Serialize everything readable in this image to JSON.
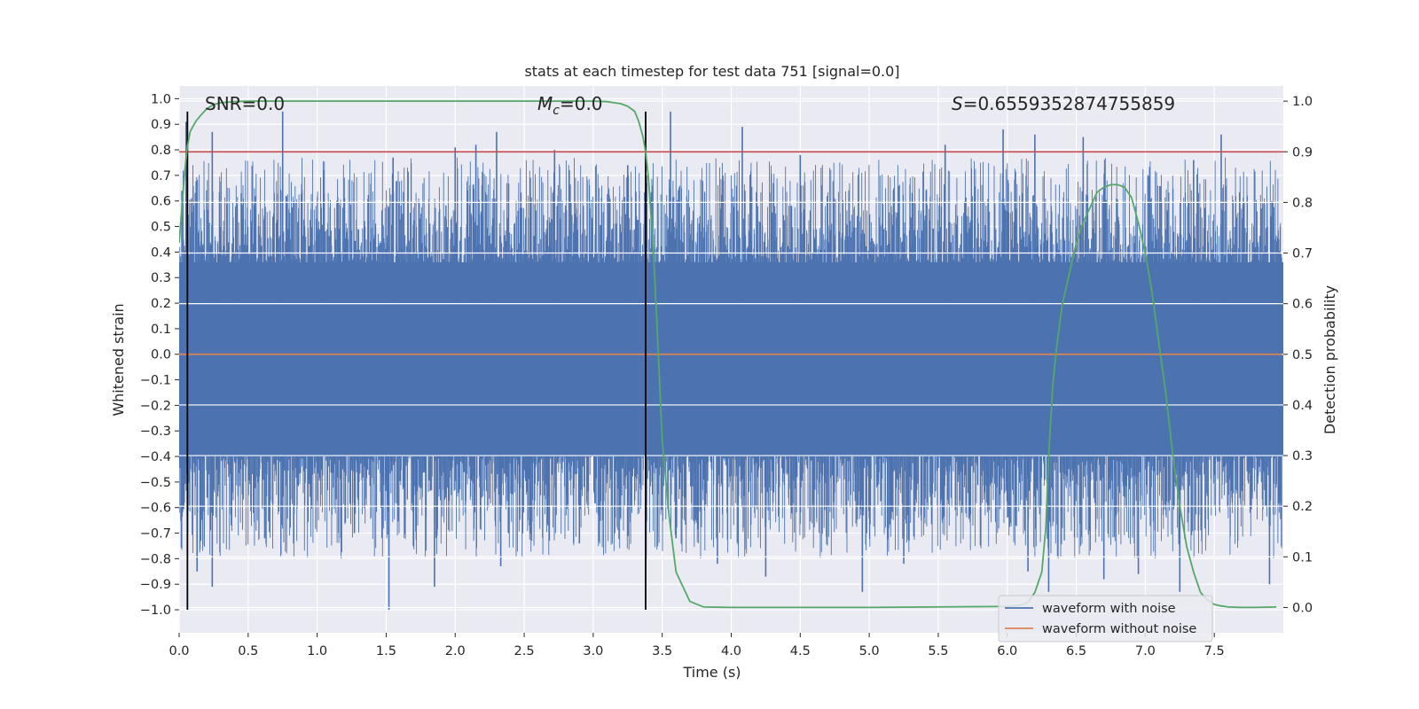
{
  "chart_data": {
    "type": "line",
    "title": "stats at each timestep for test data 751 [signal=0.0]",
    "xlabel": "Time (s)",
    "ylabel_left": "Whitened strain",
    "ylabel_right": "Detection probability",
    "xlim": [
      0.0,
      8.0
    ],
    "ylim_left": [
      -1.09,
      1.05
    ],
    "ylim_right": [
      -0.05,
      1.03
    ],
    "xticks": [
      "0.0",
      "0.5",
      "1.0",
      "1.5",
      "2.0",
      "2.5",
      "3.0",
      "3.5",
      "4.0",
      "4.5",
      "5.0",
      "5.5",
      "6.0",
      "6.5",
      "7.0",
      "7.5"
    ],
    "yticks_left": [
      "1.0",
      "0.9",
      "0.8",
      "0.7",
      "0.6",
      "0.5",
      "0.4",
      "0.3",
      "0.2",
      "0.1",
      "0.0",
      "−0.1",
      "−0.2",
      "−0.3",
      "−0.4",
      "−0.5",
      "−0.6",
      "−0.7",
      "−0.8",
      "−0.9",
      "−1.0"
    ],
    "yticks_right": [
      "1.0",
      "0.9",
      "0.8",
      "0.7",
      "0.6",
      "0.5",
      "0.4",
      "0.3",
      "0.2",
      "0.1",
      "0.0"
    ],
    "grid": true,
    "legend_position": "lower right",
    "annotations": {
      "snr": "SNR=0.0",
      "mc_symbol": "M",
      "mc_subscript": "c",
      "mc_value": "=0.0",
      "s_symbol": "S",
      "s_value": "=0.6559352874755859"
    },
    "colors": {
      "background": "#eaeaf2",
      "noise": "#4c72b0",
      "clean": "#dd8452",
      "probability": "#55a868",
      "threshold": "#c44e52",
      "marker": "#000000",
      "grid": "#ffffff"
    },
    "vertical_lines_x": [
      0.06,
      3.38
    ],
    "threshold_probability": 0.9,
    "series": [
      {
        "name": "waveform with noise",
        "axis": "left",
        "style": "dense-noise",
        "envelope_core": [
          -0.4,
          0.36
        ],
        "spikes": [
          {
            "x": 0.02,
            "y": 0.64
          },
          {
            "x": 0.05,
            "y": 0.91
          },
          {
            "x": 0.13,
            "y": -0.85
          },
          {
            "x": 0.24,
            "y": 0.87
          },
          {
            "x": 0.24,
            "y": -0.91
          },
          {
            "x": 0.45,
            "y": 0.63
          },
          {
            "x": 0.62,
            "y": -0.72
          },
          {
            "x": 0.75,
            "y": 0.95
          },
          {
            "x": 0.83,
            "y": -0.74
          },
          {
            "x": 1.05,
            "y": 0.63
          },
          {
            "x": 1.27,
            "y": -0.7
          },
          {
            "x": 1.52,
            "y": -1.0
          },
          {
            "x": 1.55,
            "y": 0.77
          },
          {
            "x": 1.85,
            "y": -0.91
          },
          {
            "x": 2.0,
            "y": 0.81
          },
          {
            "x": 2.15,
            "y": 0.82
          },
          {
            "x": 2.3,
            "y": 0.87
          },
          {
            "x": 2.33,
            "y": -0.83
          },
          {
            "x": 2.72,
            "y": 0.8
          },
          {
            "x": 2.9,
            "y": -0.74
          },
          {
            "x": 3.25,
            "y": 0.74
          },
          {
            "x": 3.56,
            "y": 0.95
          },
          {
            "x": 3.6,
            "y": -0.72
          },
          {
            "x": 3.9,
            "y": -0.82
          },
          {
            "x": 4.08,
            "y": 0.89
          },
          {
            "x": 4.25,
            "y": -0.87
          },
          {
            "x": 4.5,
            "y": 0.78
          },
          {
            "x": 4.95,
            "y": -0.93
          },
          {
            "x": 5.25,
            "y": -0.82
          },
          {
            "x": 5.55,
            "y": 0.82
          },
          {
            "x": 5.97,
            "y": 0.88
          },
          {
            "x": 6.15,
            "y": -0.85
          },
          {
            "x": 6.2,
            "y": 0.86
          },
          {
            "x": 6.3,
            "y": -0.93
          },
          {
            "x": 6.55,
            "y": 0.85
          },
          {
            "x": 6.7,
            "y": -0.88
          },
          {
            "x": 6.95,
            "y": -0.86
          },
          {
            "x": 7.25,
            "y": -0.93
          },
          {
            "x": 7.35,
            "y": 0.76
          },
          {
            "x": 7.55,
            "y": 0.86
          },
          {
            "x": 7.9,
            "y": -0.9
          }
        ]
      },
      {
        "name": "waveform without noise",
        "axis": "left",
        "style": "line",
        "x": [
          0.0,
          7.99
        ],
        "y": [
          0.0,
          0.0
        ]
      },
      {
        "name": "Detection probability",
        "axis": "right",
        "style": "line",
        "x": [
          0.0,
          0.02,
          0.04,
          0.06,
          0.08,
          0.1,
          0.12,
          0.15,
          0.2,
          0.25,
          0.3,
          0.4,
          0.5,
          1.0,
          2.0,
          3.0,
          3.1,
          3.2,
          3.25,
          3.3,
          3.33,
          3.36,
          3.38,
          3.4,
          3.42,
          3.44,
          3.46,
          3.48,
          3.5,
          3.55,
          3.6,
          3.7,
          3.8,
          4.0,
          5.0,
          6.0,
          6.1,
          6.15,
          6.2,
          6.25,
          6.28,
          6.3,
          6.33,
          6.36,
          6.4,
          6.45,
          6.5,
          6.55,
          6.6,
          6.65,
          6.7,
          6.75,
          6.8,
          6.85,
          6.9,
          6.95,
          7.0,
          7.05,
          7.1,
          7.15,
          7.2,
          7.25,
          7.3,
          7.35,
          7.4,
          7.45,
          7.5,
          7.55,
          7.6,
          7.7,
          7.8,
          7.95
        ],
        "y": [
          0.72,
          0.79,
          0.86,
          0.91,
          0.94,
          0.95,
          0.96,
          0.97,
          0.985,
          0.993,
          0.997,
          0.999,
          1.0,
          1.0,
          1.0,
          1.0,
          0.999,
          0.995,
          0.99,
          0.98,
          0.96,
          0.93,
          0.9,
          0.85,
          0.77,
          0.68,
          0.57,
          0.45,
          0.33,
          0.18,
          0.07,
          0.012,
          0.001,
          0.0,
          0.0,
          0.002,
          0.005,
          0.01,
          0.03,
          0.07,
          0.16,
          0.3,
          0.44,
          0.52,
          0.6,
          0.66,
          0.72,
          0.76,
          0.79,
          0.82,
          0.83,
          0.835,
          0.835,
          0.83,
          0.81,
          0.76,
          0.7,
          0.62,
          0.52,
          0.42,
          0.3,
          0.2,
          0.12,
          0.07,
          0.03,
          0.015,
          0.006,
          0.003,
          0.001,
          0.0,
          0.0,
          0.001
        ]
      }
    ]
  }
}
